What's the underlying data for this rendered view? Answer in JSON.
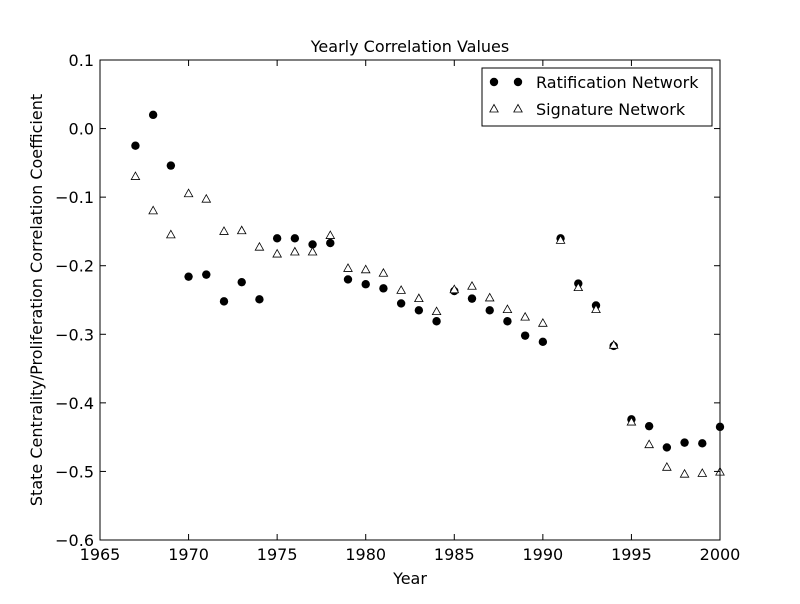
{
  "chart_data": {
    "type": "scatter",
    "title": "Yearly Correlation Values",
    "xlabel": "Year",
    "ylabel": "State Centrality/Proliferation Correlation Coefficient",
    "xlim": [
      1965,
      2000
    ],
    "ylim": [
      -0.6,
      0.1
    ],
    "xticks": [
      1965,
      1970,
      1975,
      1980,
      1985,
      1990,
      1995,
      2000
    ],
    "yticks": [
      0.1,
      0.0,
      -0.1,
      -0.2,
      -0.3,
      -0.4,
      -0.5,
      -0.6
    ],
    "xtick_labels": [
      "1965",
      "1970",
      "1975",
      "1980",
      "1985",
      "1990",
      "1995",
      "2000"
    ],
    "ytick_labels": [
      "0.1",
      "0.0",
      "−0.1",
      "−0.2",
      "−0.3",
      "−0.4",
      "−0.5",
      "−0.6"
    ],
    "grid": false,
    "legend_position": "top-right",
    "series": [
      {
        "name": "Ratification Network",
        "marker": "filled-circle",
        "color": "#000000",
        "x": [
          1967,
          1968,
          1969,
          1970,
          1971,
          1972,
          1973,
          1974,
          1975,
          1976,
          1977,
          1978,
          1979,
          1980,
          1981,
          1982,
          1983,
          1984,
          1985,
          1986,
          1987,
          1988,
          1989,
          1990,
          1991,
          1992,
          1993,
          1994,
          1995,
          1996,
          1997,
          1998,
          1999,
          2000
        ],
        "y": [
          -0.025,
          0.02,
          -0.054,
          -0.216,
          -0.213,
          -0.252,
          -0.224,
          -0.249,
          -0.16,
          -0.16,
          -0.169,
          -0.167,
          -0.22,
          -0.227,
          -0.233,
          -0.255,
          -0.265,
          -0.281,
          -0.237,
          -0.248,
          -0.265,
          -0.281,
          -0.302,
          -0.311,
          -0.16,
          -0.226,
          -0.258,
          -0.317,
          -0.424,
          -0.434,
          -0.465,
          -0.458,
          -0.459,
          -0.435
        ]
      },
      {
        "name": "Signature Network",
        "marker": "open-triangle",
        "color": "#000000",
        "x": [
          1967,
          1968,
          1969,
          1970,
          1971,
          1972,
          1973,
          1974,
          1975,
          1976,
          1977,
          1978,
          1979,
          1980,
          1981,
          1982,
          1983,
          1984,
          1985,
          1986,
          1987,
          1988,
          1989,
          1990,
          1991,
          1992,
          1993,
          1994,
          1995,
          1996,
          1997,
          1998,
          1999,
          2000
        ],
        "y": [
          -0.07,
          -0.12,
          -0.155,
          -0.095,
          -0.103,
          -0.15,
          -0.149,
          -0.173,
          -0.183,
          -0.18,
          -0.18,
          -0.156,
          -0.204,
          -0.206,
          -0.211,
          -0.236,
          -0.248,
          -0.267,
          -0.235,
          -0.23,
          -0.247,
          -0.264,
          -0.275,
          -0.284,
          -0.163,
          -0.232,
          -0.264,
          -0.316,
          -0.428,
          -0.461,
          -0.494,
          -0.504,
          -0.503,
          -0.501
        ]
      }
    ]
  }
}
